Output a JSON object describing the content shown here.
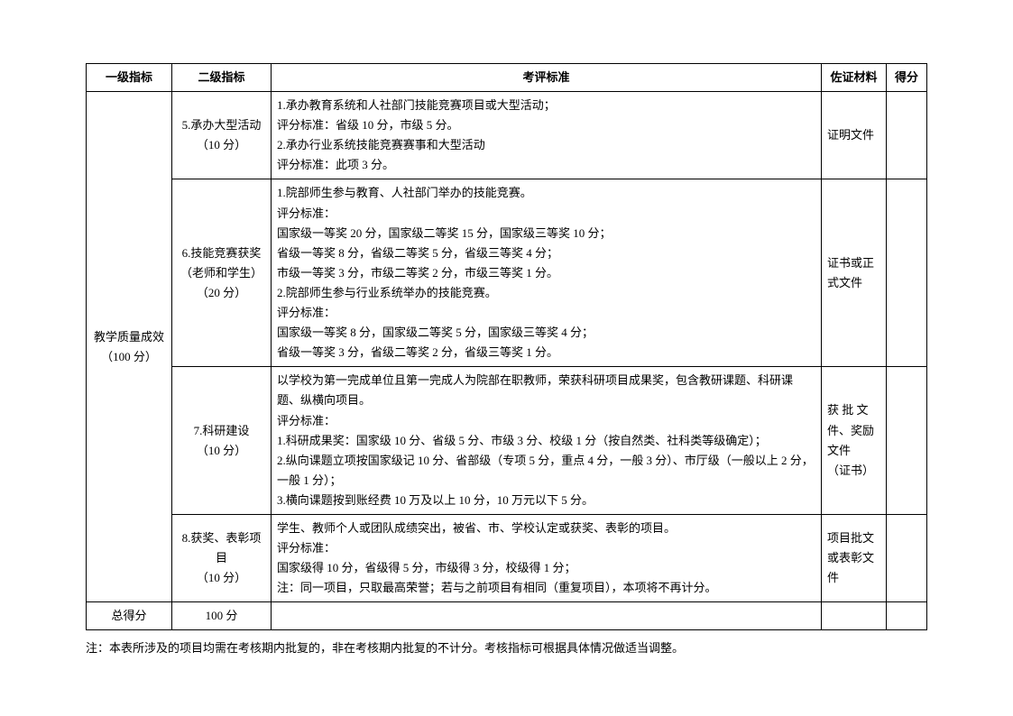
{
  "headers": {
    "level1": "一级指标",
    "level2": "二级指标",
    "standard": "考评标准",
    "material": "佐证材料",
    "score": "得分"
  },
  "level1": {
    "name": "教学质量成效",
    "points": "（100 分）"
  },
  "rows": [
    {
      "level2_title": "5.承办大型活动",
      "level2_points": "（10 分）",
      "standard": "1.承办教育系统和人社部门技能竞赛项目或大型活动；\n评分标准：省级 10 分，市级 5 分。\n2.承办行业系统技能竞赛赛事和大型活动\n评分标准：此项 3 分。",
      "material": "证明文件"
    },
    {
      "level2_title": "6.技能竞赛获奖",
      "level2_sub": "（老师和学生）",
      "level2_points": "（20 分）",
      "standard": "1.院部师生参与教育、人社部门举办的技能竞赛。\n评分标准：\n国家级一等奖 20 分，国家级二等奖 15 分，国家级三等奖 10 分；\n省级一等奖 8 分，省级二等奖 5 分，省级三等奖 4 分；\n市级一等奖 3 分，市级二等奖 2 分，市级三等奖 1 分。\n2.院部师生参与行业系统举办的技能竞赛。\n评分标准：\n国家级一等奖 8 分，国家级二等奖 5 分，国家级三等奖 4 分；\n省级一等奖 3 分，省级二等奖 2 分，省级三等奖 1 分。",
      "material": "证书或正式文件"
    },
    {
      "level2_title": "7.科研建设",
      "level2_points": "（10 分）",
      "standard": "以学校为第一完成单位且第一完成人为院部在职教师，荣获科研项目成果奖，包含教研课题、科研课题、纵横向项目。\n评分标准：\n1.科研成果奖：国家级 10 分、省级 5 分、市级 3 分、校级 1 分（按自然类、社科类等级确定）；\n2.纵向课题立项按国家级记 10 分、省部级（专项 5 分，重点 4 分，一般 3 分）、市厅级（一般以上 2 分，一般 1 分）；\n3.横向课题按到账经费 10 万及以上 10 分，10 万元以下 5 分。",
      "material": "获 批 文件、奖励文件\n（证书）"
    },
    {
      "level2_title": "8.获奖、表彰项目",
      "level2_points": "（10 分）",
      "standard": "学生、教师个人或团队成绩突出，被省、市、学校认定或获奖、表彰的项目。\n评分标准：\n国家级得 10 分，省级得 5 分，市级得 3 分，校级得 1 分；\n注：同一项目，只取最高荣誉；若与之前项目有相同（重复项目），本项将不再计分。",
      "material": "项目批文或表彰文件"
    }
  ],
  "total": {
    "label": "总得分",
    "points": "100 分"
  },
  "note": "注：本表所涉及的项目均需在考核期内批复的，非在考核期内批复的不计分。考核指标可根据具体情况做适当调整。"
}
